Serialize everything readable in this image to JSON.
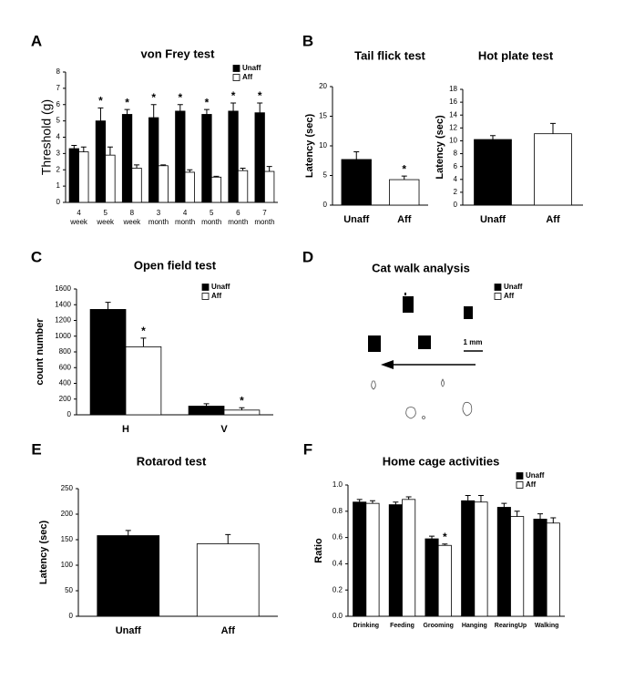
{
  "chart_data": [
    {
      "panel": "A",
      "type": "bar",
      "title": "von Frey test",
      "y_label": "Threshold (g)",
      "categories": [
        [
          "4",
          "week"
        ],
        [
          "5",
          "week"
        ],
        [
          "8",
          "week"
        ],
        [
          "3",
          "month"
        ],
        [
          "4",
          "month"
        ],
        [
          "5",
          "month"
        ],
        [
          "6",
          "month"
        ],
        [
          "7",
          "month"
        ]
      ],
      "series": [
        {
          "name": "Unaff",
          "color": "#000000",
          "values": [
            3.3,
            5.0,
            5.4,
            5.2,
            5.6,
            5.4,
            5.6,
            5.5
          ],
          "errors": [
            0.2,
            0.8,
            0.3,
            0.8,
            0.4,
            0.3,
            0.5,
            0.6
          ],
          "significance": [
            null,
            "*",
            "*",
            "*",
            "*",
            "*",
            "*",
            "*"
          ]
        },
        {
          "name": "Aff",
          "color": "#ffffff",
          "values": [
            3.1,
            2.9,
            2.1,
            2.25,
            1.85,
            1.55,
            1.95,
            1.9
          ],
          "errors": [
            0.3,
            0.5,
            0.2,
            0.05,
            0.15,
            0.05,
            0.15,
            0.3
          ],
          "significance": [
            null,
            null,
            null,
            null,
            null,
            null,
            null,
            null
          ]
        }
      ],
      "ylim": [
        0,
        8
      ],
      "yticks": [
        0,
        1,
        2,
        3,
        4,
        5,
        6,
        7,
        8
      ],
      "legend": true
    },
    {
      "panel": "B",
      "type": "bar",
      "title": "Tail flick test",
      "y_label": "Latency (sec)",
      "categories": [
        "Unaff",
        "Aff"
      ],
      "values": [
        7.7,
        4.3
      ],
      "errors": [
        1.3,
        0.6
      ],
      "significance": [
        null,
        "*"
      ],
      "colors": [
        "#000000",
        "#ffffff"
      ],
      "ylim": [
        0,
        20
      ],
      "yticks": [
        0,
        5,
        10,
        15,
        20
      ],
      "legend": false
    },
    {
      "type": "bar",
      "title": "Hot plate test",
      "y_label": "Latency (sec)",
      "categories": [
        "Unaff",
        "Aff"
      ],
      "values": [
        10.2,
        11.1
      ],
      "errors": [
        0.6,
        1.6
      ],
      "significance": [
        null,
        null
      ],
      "colors": [
        "#000000",
        "#ffffff"
      ],
      "ylim": [
        0,
        18
      ],
      "yticks": [
        0,
        2,
        4,
        6,
        8,
        10,
        12,
        14,
        16,
        18
      ],
      "legend": false
    },
    {
      "panel": "C",
      "type": "bar",
      "title": "Open field test",
      "y_label": "count number",
      "categories": [
        "H",
        "V"
      ],
      "series": [
        {
          "name": "Unaff",
          "color": "#000000",
          "values": [
            1340,
            110
          ],
          "errors": [
            90,
            30
          ],
          "significance": [
            null,
            null
          ]
        },
        {
          "name": "Aff",
          "color": "#ffffff",
          "values": [
            865,
            60
          ],
          "errors": [
            110,
            30
          ],
          "significance": [
            "*",
            "*"
          ]
        }
      ],
      "ylim": [
        0,
        1600
      ],
      "yticks": [
        0,
        200,
        400,
        600,
        800,
        1000,
        1200,
        1400,
        1600
      ],
      "legend": true
    },
    {
      "panel": "D",
      "type": "image",
      "title": "Cat walk analysis",
      "legend": [
        "Unaff",
        "Aff"
      ],
      "scale_label": "1 mm"
    },
    {
      "panel": "E",
      "type": "bar",
      "title": "Rotarod test",
      "y_label": "Latency (sec)",
      "categories": [
        "Unaff",
        "Aff"
      ],
      "values": [
        158,
        142
      ],
      "errors": [
        10,
        18
      ],
      "significance": [
        null,
        null
      ],
      "colors": [
        "#000000",
        "#ffffff"
      ],
      "ylim": [
        0,
        250
      ],
      "yticks": [
        0,
        50,
        100,
        150,
        200,
        250
      ],
      "legend": false
    },
    {
      "panel": "F",
      "type": "bar",
      "title": "Home cage activities",
      "y_label": "Ratio",
      "categories": [
        "Drinking",
        "Feeding",
        "Grooming",
        "Hanging",
        "RearingUp",
        "Walking"
      ],
      "series": [
        {
          "name": "Unaff",
          "color": "#000000",
          "values": [
            0.87,
            0.85,
            0.59,
            0.88,
            0.83,
            0.74
          ],
          "errors": [
            0.02,
            0.02,
            0.02,
            0.04,
            0.03,
            0.04
          ],
          "significance": [
            null,
            null,
            null,
            null,
            null,
            null
          ]
        },
        {
          "name": "Aff",
          "color": "#ffffff",
          "values": [
            0.86,
            0.89,
            0.54,
            0.87,
            0.76,
            0.71
          ],
          "errors": [
            0.02,
            0.02,
            0.01,
            0.05,
            0.04,
            0.04
          ],
          "significance": [
            null,
            null,
            "*",
            null,
            null,
            null
          ]
        }
      ],
      "ylim": [
        0,
        1
      ],
      "yticks": [
        {
          "value": 0,
          "label": "0.0"
        },
        0.2,
        0.4,
        0.6,
        0.8,
        {
          "value": 1,
          "label": "1.0"
        }
      ],
      "legend": true
    }
  ]
}
